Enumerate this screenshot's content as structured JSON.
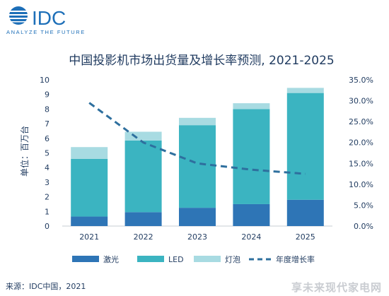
{
  "brand": {
    "name": "IDC",
    "tagline": "ANALYZE THE FUTURE"
  },
  "source_text": "来源：IDC中国，2021",
  "watermark_text": "享未来现代家电网",
  "colors": {
    "laser": "#2e75b6",
    "led": "#3bb4c1",
    "lamp": "#a8dbe2",
    "growth": "#2e6f9e",
    "text": "#1f3a5f"
  },
  "chart_data": {
    "type": "bar",
    "stacked": true,
    "title": "中国投影机市场出货量及增长率预测, 2021-2025",
    "ylabel": "单位：百万台",
    "categories": [
      "2021",
      "2022",
      "2023",
      "2024",
      "2025"
    ],
    "ylim": [
      0,
      10
    ],
    "y_ticks": [
      "0",
      "1",
      "2",
      "3",
      "4",
      "5",
      "6",
      "7",
      "8",
      "9",
      "10"
    ],
    "y2lim": [
      0,
      35
    ],
    "y2_ticks": [
      "0.0%",
      "5.0%",
      "10.0%",
      "15.0%",
      "20.0%",
      "25.0%",
      "30.0%",
      "35.0%"
    ],
    "series": [
      {
        "name": "激光",
        "values": [
          0.65,
          0.95,
          1.25,
          1.5,
          1.8
        ]
      },
      {
        "name": "LED",
        "values": [
          3.95,
          4.9,
          5.65,
          6.5,
          7.3
        ]
      },
      {
        "name": "灯泡",
        "values": [
          0.8,
          0.6,
          0.5,
          0.4,
          0.35
        ]
      }
    ],
    "line_series": {
      "name": "年度增长率",
      "values": [
        29.5,
        20.0,
        15.0,
        13.5,
        12.5
      ],
      "style": "dashed"
    },
    "legend_position": "bottom",
    "grid": false
  }
}
